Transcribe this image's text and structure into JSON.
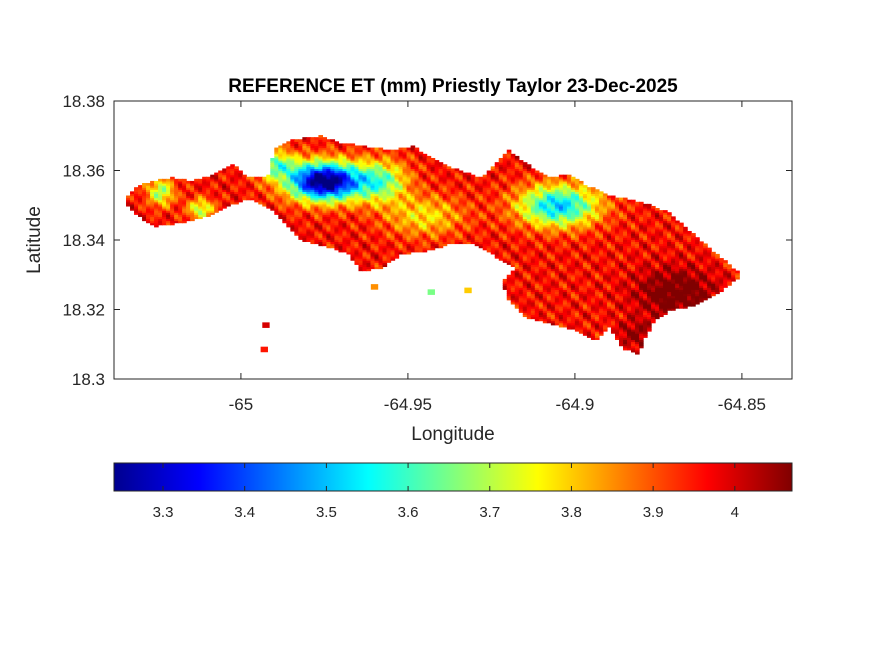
{
  "chart_data": {
    "type": "heatmap",
    "title": "REFERENCE ET (mm) Priestly Taylor 23-Dec-2025",
    "xlabel": "Longitude",
    "ylabel": "Latitude",
    "xlim": [
      -65.038,
      -64.835
    ],
    "ylim": [
      18.3,
      18.38
    ],
    "xticks": [
      -65,
      -64.95,
      -64.9,
      -64.85
    ],
    "xtick_labels": [
      "-65",
      "-64.95",
      "-64.9",
      "-64.85"
    ],
    "yticks": [
      18.3,
      18.32,
      18.34,
      18.36,
      18.38
    ],
    "ytick_labels": [
      "18.3",
      "18.32",
      "18.34",
      "18.36",
      "18.38"
    ],
    "grid": false,
    "colormap": "jet",
    "clim": [
      3.24,
      4.07
    ],
    "colorbar": {
      "location": "bottom",
      "ticks": [
        3.3,
        3.4,
        3.5,
        3.6,
        3.7,
        3.8,
        3.9,
        4.0
      ],
      "tick_labels": [
        "3.3",
        "3.4",
        "3.5",
        "3.6",
        "3.7",
        "3.8",
        "3.9",
        "4"
      ]
    },
    "region_outline": [
      [
        -65.035,
        18.351
      ],
      [
        -65.032,
        18.355
      ],
      [
        -65.027,
        18.357
      ],
      [
        -65.02,
        18.358
      ],
      [
        -65.015,
        18.357
      ],
      [
        -65.008,
        18.359
      ],
      [
        -65.002,
        18.362
      ],
      [
        -64.998,
        18.358
      ],
      [
        -64.992,
        18.358
      ],
      [
        -64.99,
        18.366
      ],
      [
        -64.984,
        18.369
      ],
      [
        -64.976,
        18.37
      ],
      [
        -64.97,
        18.368
      ],
      [
        -64.963,
        18.367
      ],
      [
        -64.955,
        18.366
      ],
      [
        -64.948,
        18.367
      ],
      [
        -64.944,
        18.364
      ],
      [
        -64.94,
        18.362
      ],
      [
        -64.934,
        18.36
      ],
      [
        -64.928,
        18.358
      ],
      [
        -64.924,
        18.362
      ],
      [
        -64.92,
        18.366
      ],
      [
        -64.913,
        18.361
      ],
      [
        -64.907,
        18.358
      ],
      [
        -64.902,
        18.359
      ],
      [
        -64.897,
        18.356
      ],
      [
        -64.89,
        18.353
      ],
      [
        -64.88,
        18.351
      ],
      [
        -64.872,
        18.348
      ],
      [
        -64.866,
        18.343
      ],
      [
        -64.86,
        18.338
      ],
      [
        -64.855,
        18.334
      ],
      [
        -64.85,
        18.33
      ],
      [
        -64.854,
        18.327
      ],
      [
        -64.858,
        18.324
      ],
      [
        -64.865,
        18.321
      ],
      [
        -64.871,
        18.32
      ],
      [
        -64.876,
        18.317
      ],
      [
        -64.879,
        18.312
      ],
      [
        -64.881,
        18.307
      ],
      [
        -64.886,
        18.309
      ],
      [
        -64.89,
        18.315
      ],
      [
        -64.894,
        18.311
      ],
      [
        -64.9,
        18.314
      ],
      [
        -64.908,
        18.316
      ],
      [
        -64.915,
        18.318
      ],
      [
        -64.92,
        18.323
      ],
      [
        -64.922,
        18.328
      ],
      [
        -64.918,
        18.332
      ],
      [
        -64.925,
        18.336
      ],
      [
        -64.931,
        18.339
      ],
      [
        -64.937,
        18.339
      ],
      [
        -64.944,
        18.337
      ],
      [
        -64.952,
        18.336
      ],
      [
        -64.958,
        18.332
      ],
      [
        -64.964,
        18.331
      ],
      [
        -64.968,
        18.336
      ],
      [
        -64.974,
        18.338
      ],
      [
        -64.982,
        18.34
      ],
      [
        -64.986,
        18.344
      ],
      [
        -64.99,
        18.348
      ],
      [
        -64.997,
        18.352
      ],
      [
        -65.003,
        18.35
      ],
      [
        -65.01,
        18.347
      ],
      [
        -65.018,
        18.345
      ],
      [
        -65.026,
        18.344
      ],
      [
        -65.031,
        18.347
      ],
      [
        -65.035,
        18.351
      ]
    ],
    "outlying_patches": [
      {
        "lon": -64.96,
        "lat": 18.3265,
        "value": 3.85
      },
      {
        "lon": -64.943,
        "lat": 18.325,
        "value": 3.65
      },
      {
        "lon": -64.9925,
        "lat": 18.3155,
        "value": 4.0
      },
      {
        "lon": -64.993,
        "lat": 18.3085,
        "value": 3.95
      },
      {
        "lon": -64.932,
        "lat": 18.3255,
        "value": 3.8
      }
    ],
    "value_features": [
      {
        "lon": -64.975,
        "lat": 18.357,
        "sx": 0.011,
        "sy": 0.0055,
        "amp": -0.78
      },
      {
        "lon": -64.99,
        "lat": 18.362,
        "sx": 0.006,
        "sy": 0.004,
        "amp": -0.3
      },
      {
        "lon": -64.958,
        "lat": 18.357,
        "sx": 0.008,
        "sy": 0.006,
        "amp": -0.3
      },
      {
        "lon": -64.905,
        "lat": 18.35,
        "sx": 0.012,
        "sy": 0.006,
        "amp": -0.45
      },
      {
        "lon": -64.945,
        "lat": 18.347,
        "sx": 0.012,
        "sy": 0.006,
        "amp": -0.18
      },
      {
        "lon": -65.024,
        "lat": 18.354,
        "sx": 0.004,
        "sy": 0.004,
        "amp": -0.28
      },
      {
        "lon": -65.012,
        "lat": 18.349,
        "sx": 0.004,
        "sy": 0.003,
        "amp": -0.26
      },
      {
        "lon": -64.87,
        "lat": 18.325,
        "sx": 0.012,
        "sy": 0.007,
        "amp": 0.15
      },
      {
        "lon": -64.882,
        "lat": 18.313,
        "sx": 0.005,
        "sy": 0.004,
        "amp": 0.1
      }
    ],
    "base_value": 3.96
  }
}
